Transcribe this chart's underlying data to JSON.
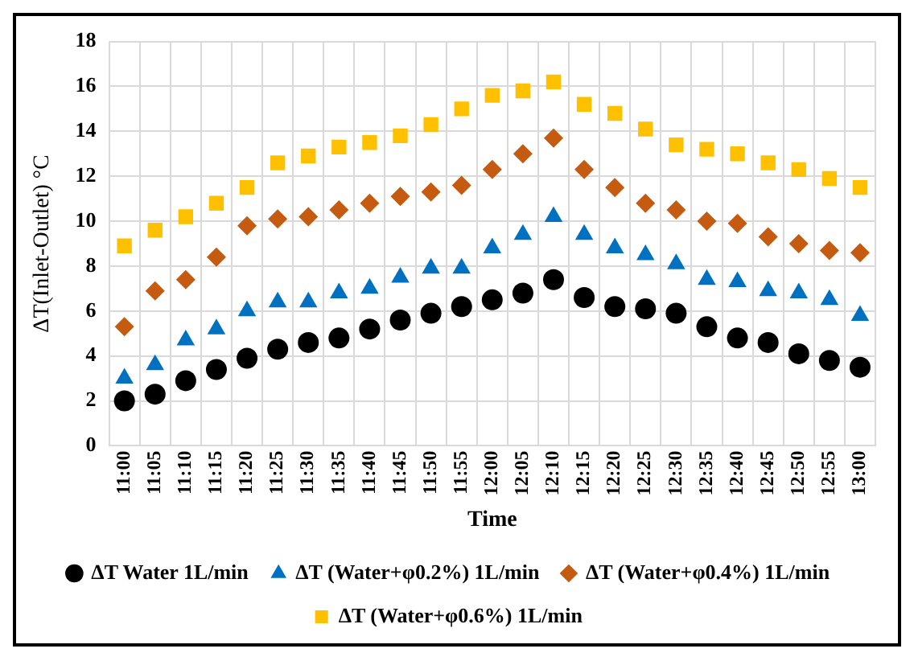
{
  "chart_data": {
    "type": "scatter",
    "xlabel": "Time",
    "ylabel": "ΔT(Inlet-Outlet) °C",
    "categories": [
      "11:00",
      "11:05",
      "11:10",
      "11:15",
      "11:20",
      "11:25",
      "11:30",
      "11:35",
      "11:40",
      "11:45",
      "11:50",
      "11:55",
      "12:00",
      "12:05",
      "12:10",
      "12:15",
      "12:20",
      "12:25",
      "12:30",
      "12:35",
      "12:40",
      "12:45",
      "12:50",
      "12:55",
      "13:00"
    ],
    "series": [
      {
        "name": "ΔT Water 1L/min",
        "color": "#000000",
        "marker": "circle",
        "values": [
          2.0,
          2.3,
          2.9,
          3.4,
          3.9,
          4.3,
          4.6,
          4.8,
          5.2,
          5.6,
          5.9,
          6.2,
          6.5,
          6.8,
          7.4,
          6.6,
          6.2,
          6.1,
          5.9,
          5.3,
          4.8,
          4.6,
          4.1,
          3.8,
          3.5
        ]
      },
      {
        "name": "ΔT (Water+φ0.2%) 1L/min",
        "color": "#0070c0",
        "marker": "triangle",
        "values": [
          3.0,
          3.6,
          4.7,
          5.2,
          6.0,
          6.4,
          6.4,
          6.8,
          7.0,
          7.5,
          7.9,
          7.9,
          8.8,
          9.4,
          10.2,
          9.4,
          8.8,
          8.5,
          8.1,
          7.4,
          7.3,
          6.9,
          6.8,
          6.5,
          5.8
        ]
      },
      {
        "name": "ΔT (Water+φ0.4%) 1L/min",
        "color": "#c55a11",
        "marker": "diamond",
        "values": [
          5.3,
          6.9,
          7.4,
          8.4,
          9.8,
          10.1,
          10.2,
          10.5,
          10.8,
          11.1,
          11.3,
          11.6,
          12.3,
          13.0,
          13.7,
          12.3,
          11.5,
          10.8,
          10.5,
          10.0,
          9.9,
          9.3,
          9.0,
          8.7,
          8.6
        ]
      },
      {
        "name": "ΔT (Water+φ0.6%) 1L/min",
        "color": "#ffc000",
        "marker": "square",
        "values": [
          8.9,
          9.6,
          10.2,
          10.8,
          11.5,
          12.6,
          12.9,
          13.3,
          13.5,
          13.8,
          14.3,
          15.0,
          15.6,
          15.8,
          16.2,
          15.2,
          14.8,
          14.1,
          13.4,
          13.2,
          13.0,
          12.6,
          12.3,
          11.9,
          11.5
        ]
      }
    ],
    "ylim": [
      0,
      18
    ],
    "yticks": [
      0,
      2,
      4,
      6,
      8,
      10,
      12,
      14,
      16,
      18
    ],
    "grid": true,
    "legend": "bottom"
  }
}
